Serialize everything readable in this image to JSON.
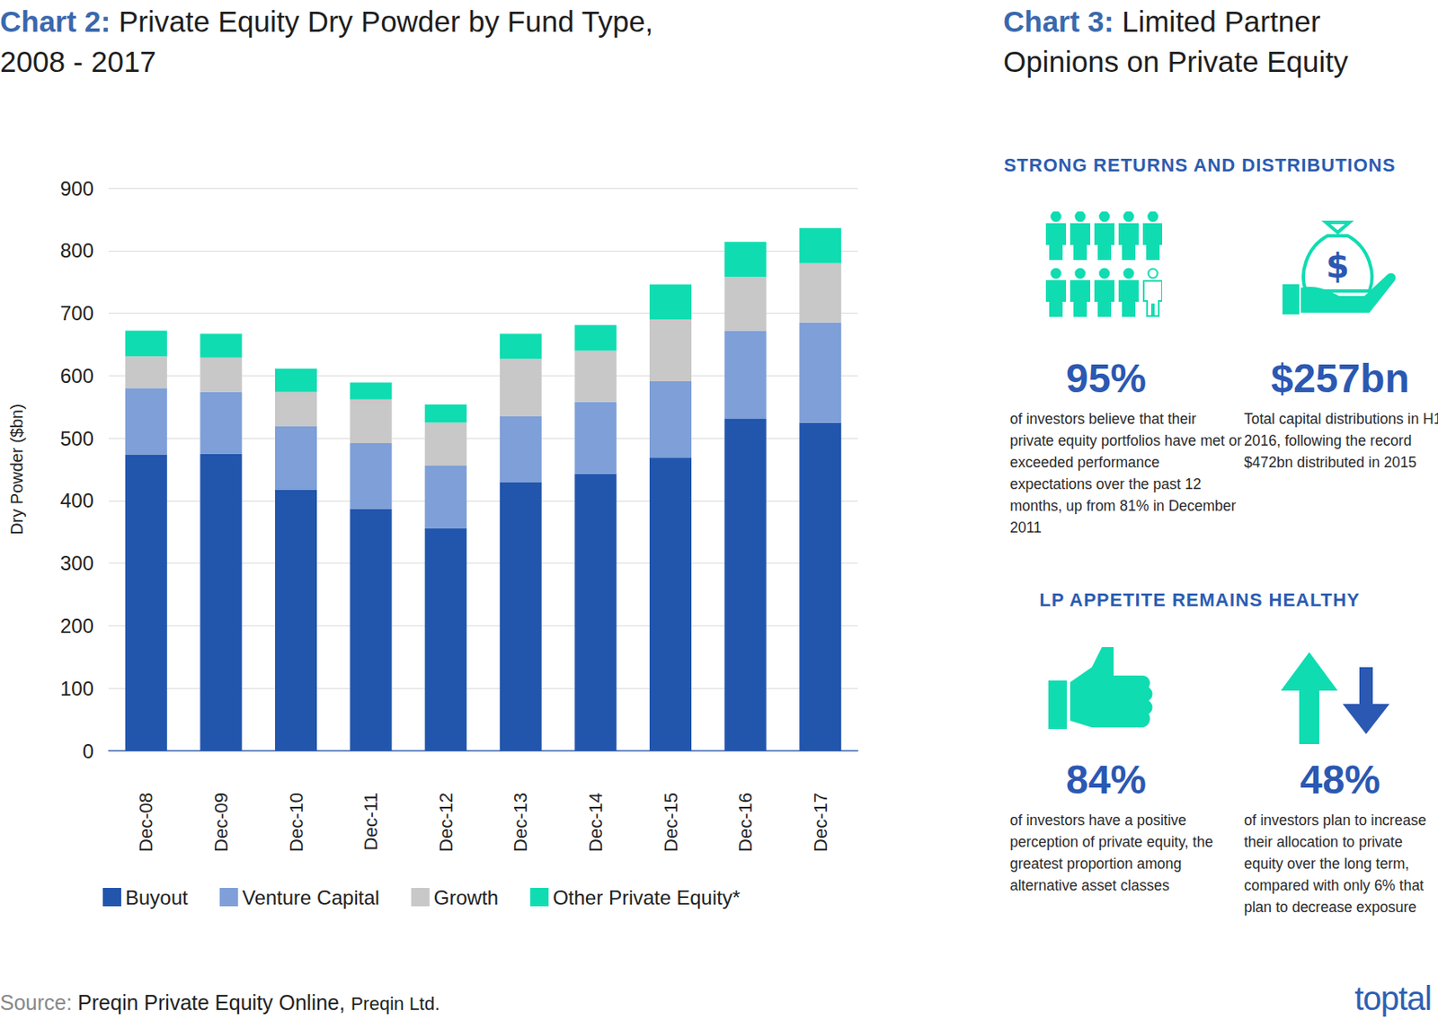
{
  "chart_data": {
    "type": "bar",
    "stacked": true,
    "title": "Chart 2: Private Equity Dry Powder by Fund Type, 2008 - 2017",
    "y_label": "Dry Powder ($bn)",
    "categories": [
      "Dec-08",
      "Dec-09",
      "Dec-10",
      "Dec-11",
      "Dec-12",
      "Dec-13",
      "Dec-14",
      "Dec-15",
      "Dec-16",
      "Dec-17"
    ],
    "series": [
      {
        "name": "Buyout",
        "color": "#2256ad",
        "values": [
          474,
          475,
          418,
          387,
          356,
          430,
          443,
          469,
          531,
          525
        ]
      },
      {
        "name": "Venture Capital",
        "color": "#7e9fd8",
        "values": [
          106,
          99,
          101,
          105,
          100,
          105,
          115,
          122,
          141,
          160
        ]
      },
      {
        "name": "Growth",
        "color": "#c8c8c8",
        "values": [
          51,
          55,
          55,
          70,
          69,
          92,
          82,
          99,
          86,
          95
        ]
      },
      {
        "name": "Other Private Equity*",
        "color": "#10dcb1",
        "values": [
          41,
          38,
          37,
          27,
          29,
          40,
          41,
          56,
          56,
          56
        ]
      }
    ],
    "ylim": [
      0,
      900
    ],
    "yticks": [
      0,
      100,
      200,
      300,
      400,
      500,
      600,
      700,
      800,
      900
    ],
    "grid": true,
    "legend": "bottom"
  },
  "panel": {
    "title": "Chart 3: Limited Partner Opinions on Private Equity",
    "sections": [
      {
        "heading": "STRONG RETURNS AND DISTRIBUTIONS",
        "stats": [
          {
            "value": "95%",
            "text": "of investors believe that their private equity portfolios have met or exceeded performance expectations over the past 12 months, up from 81% in December 2011"
          },
          {
            "value": "$257bn",
            "text": "Total capital distributions in H1 2016, following the record $472bn distributed in 2015"
          }
        ]
      },
      {
        "heading": "LP APPETITE REMAINS HEALTHY",
        "stats": [
          {
            "value": "84%",
            "text": "of investors have a positive perception of private equity, the greatest proportion among alternative asset classes"
          },
          {
            "value": "48%",
            "text": "of investors plan to increase their allocation to private equity over the long term, compared with only 6% that plan to decrease exposure"
          }
        ]
      }
    ]
  },
  "source_label": "Source:",
  "source": "Preqin Private Equity Online,",
  "source_org": "Preqin Ltd.",
  "brand": "toptal"
}
